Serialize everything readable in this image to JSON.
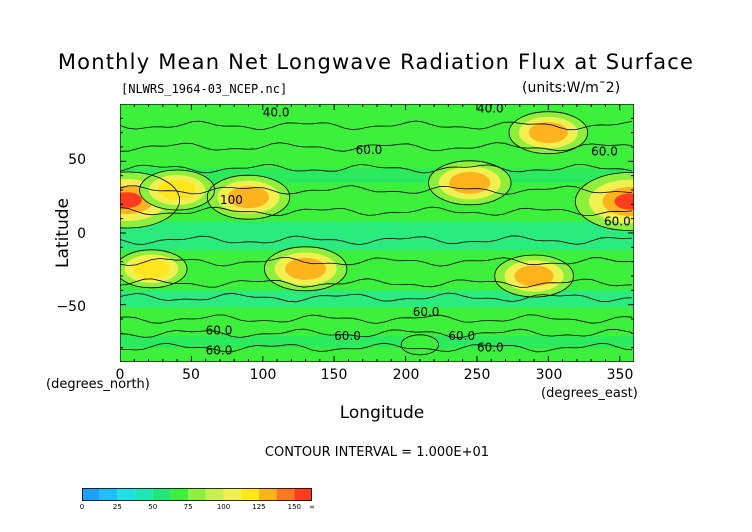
{
  "chart_data": {
    "type": "heatmap",
    "title": "Monthly Mean Net Longwave Radiation Flux at Surface",
    "subtitle_left": "[NLWRS_1964-03_NCEP.nc]",
    "subtitle_right": "(units:W/m¯2)",
    "xlabel": "Longitude",
    "ylabel": "Latitude",
    "x_units_label": "(degrees_east)",
    "y_units_label": "(degrees_north)",
    "xlim": [
      0,
      360
    ],
    "ylim": [
      -90,
      90
    ],
    "x_ticks": [
      "0",
      "50",
      "100",
      "150",
      "200",
      "250",
      "300",
      "350"
    ],
    "y_ticks": [
      "50",
      "0",
      "−50"
    ],
    "footer": "CONTOUR INTERVAL = 1.000E+01",
    "contour_interval": 10,
    "contour_labels": [
      "40.0",
      "40.0",
      "60.0",
      "60.0",
      "100",
      "60.0",
      "60.0",
      "60.0",
      "60.0",
      "60.0",
      "60.0",
      "60.0"
    ],
    "colorbar": {
      "ticks": [
        "0",
        "25",
        "50",
        "75",
        "100",
        "125",
        "150",
        "∞"
      ],
      "bounds": [
        0,
        12.5,
        25,
        37.5,
        50,
        62.5,
        75,
        87.5,
        100,
        112.5,
        125,
        137.5,
        150,
        175
      ],
      "colors": [
        "#1ea0ff",
        "#1ebeff",
        "#1ee0e6",
        "#1ee6b4",
        "#1ee678",
        "#3cf03c",
        "#8cf03c",
        "#c8f050",
        "#f0f050",
        "#ffe61e",
        "#ffb41e",
        "#ff781e",
        "#ff3c1e"
      ]
    },
    "hotspots": [
      {
        "lon": 5,
        "lat": 23,
        "value": 160
      },
      {
        "lon": 90,
        "lat": 25,
        "value": 130
      },
      {
        "lon": 40,
        "lat": 30,
        "value": 120
      },
      {
        "lon": 130,
        "lat": -25,
        "value": 130
      },
      {
        "lon": 245,
        "lat": 35,
        "value": 130
      },
      {
        "lon": 357,
        "lat": 22,
        "value": 165
      },
      {
        "lon": 300,
        "lat": 70,
        "value": 125
      },
      {
        "lon": 290,
        "lat": -30,
        "value": 125
      },
      {
        "lon": 22,
        "lat": -25,
        "value": 115
      },
      {
        "lon": 210,
        "lat": -78,
        "value": 70
      }
    ]
  }
}
